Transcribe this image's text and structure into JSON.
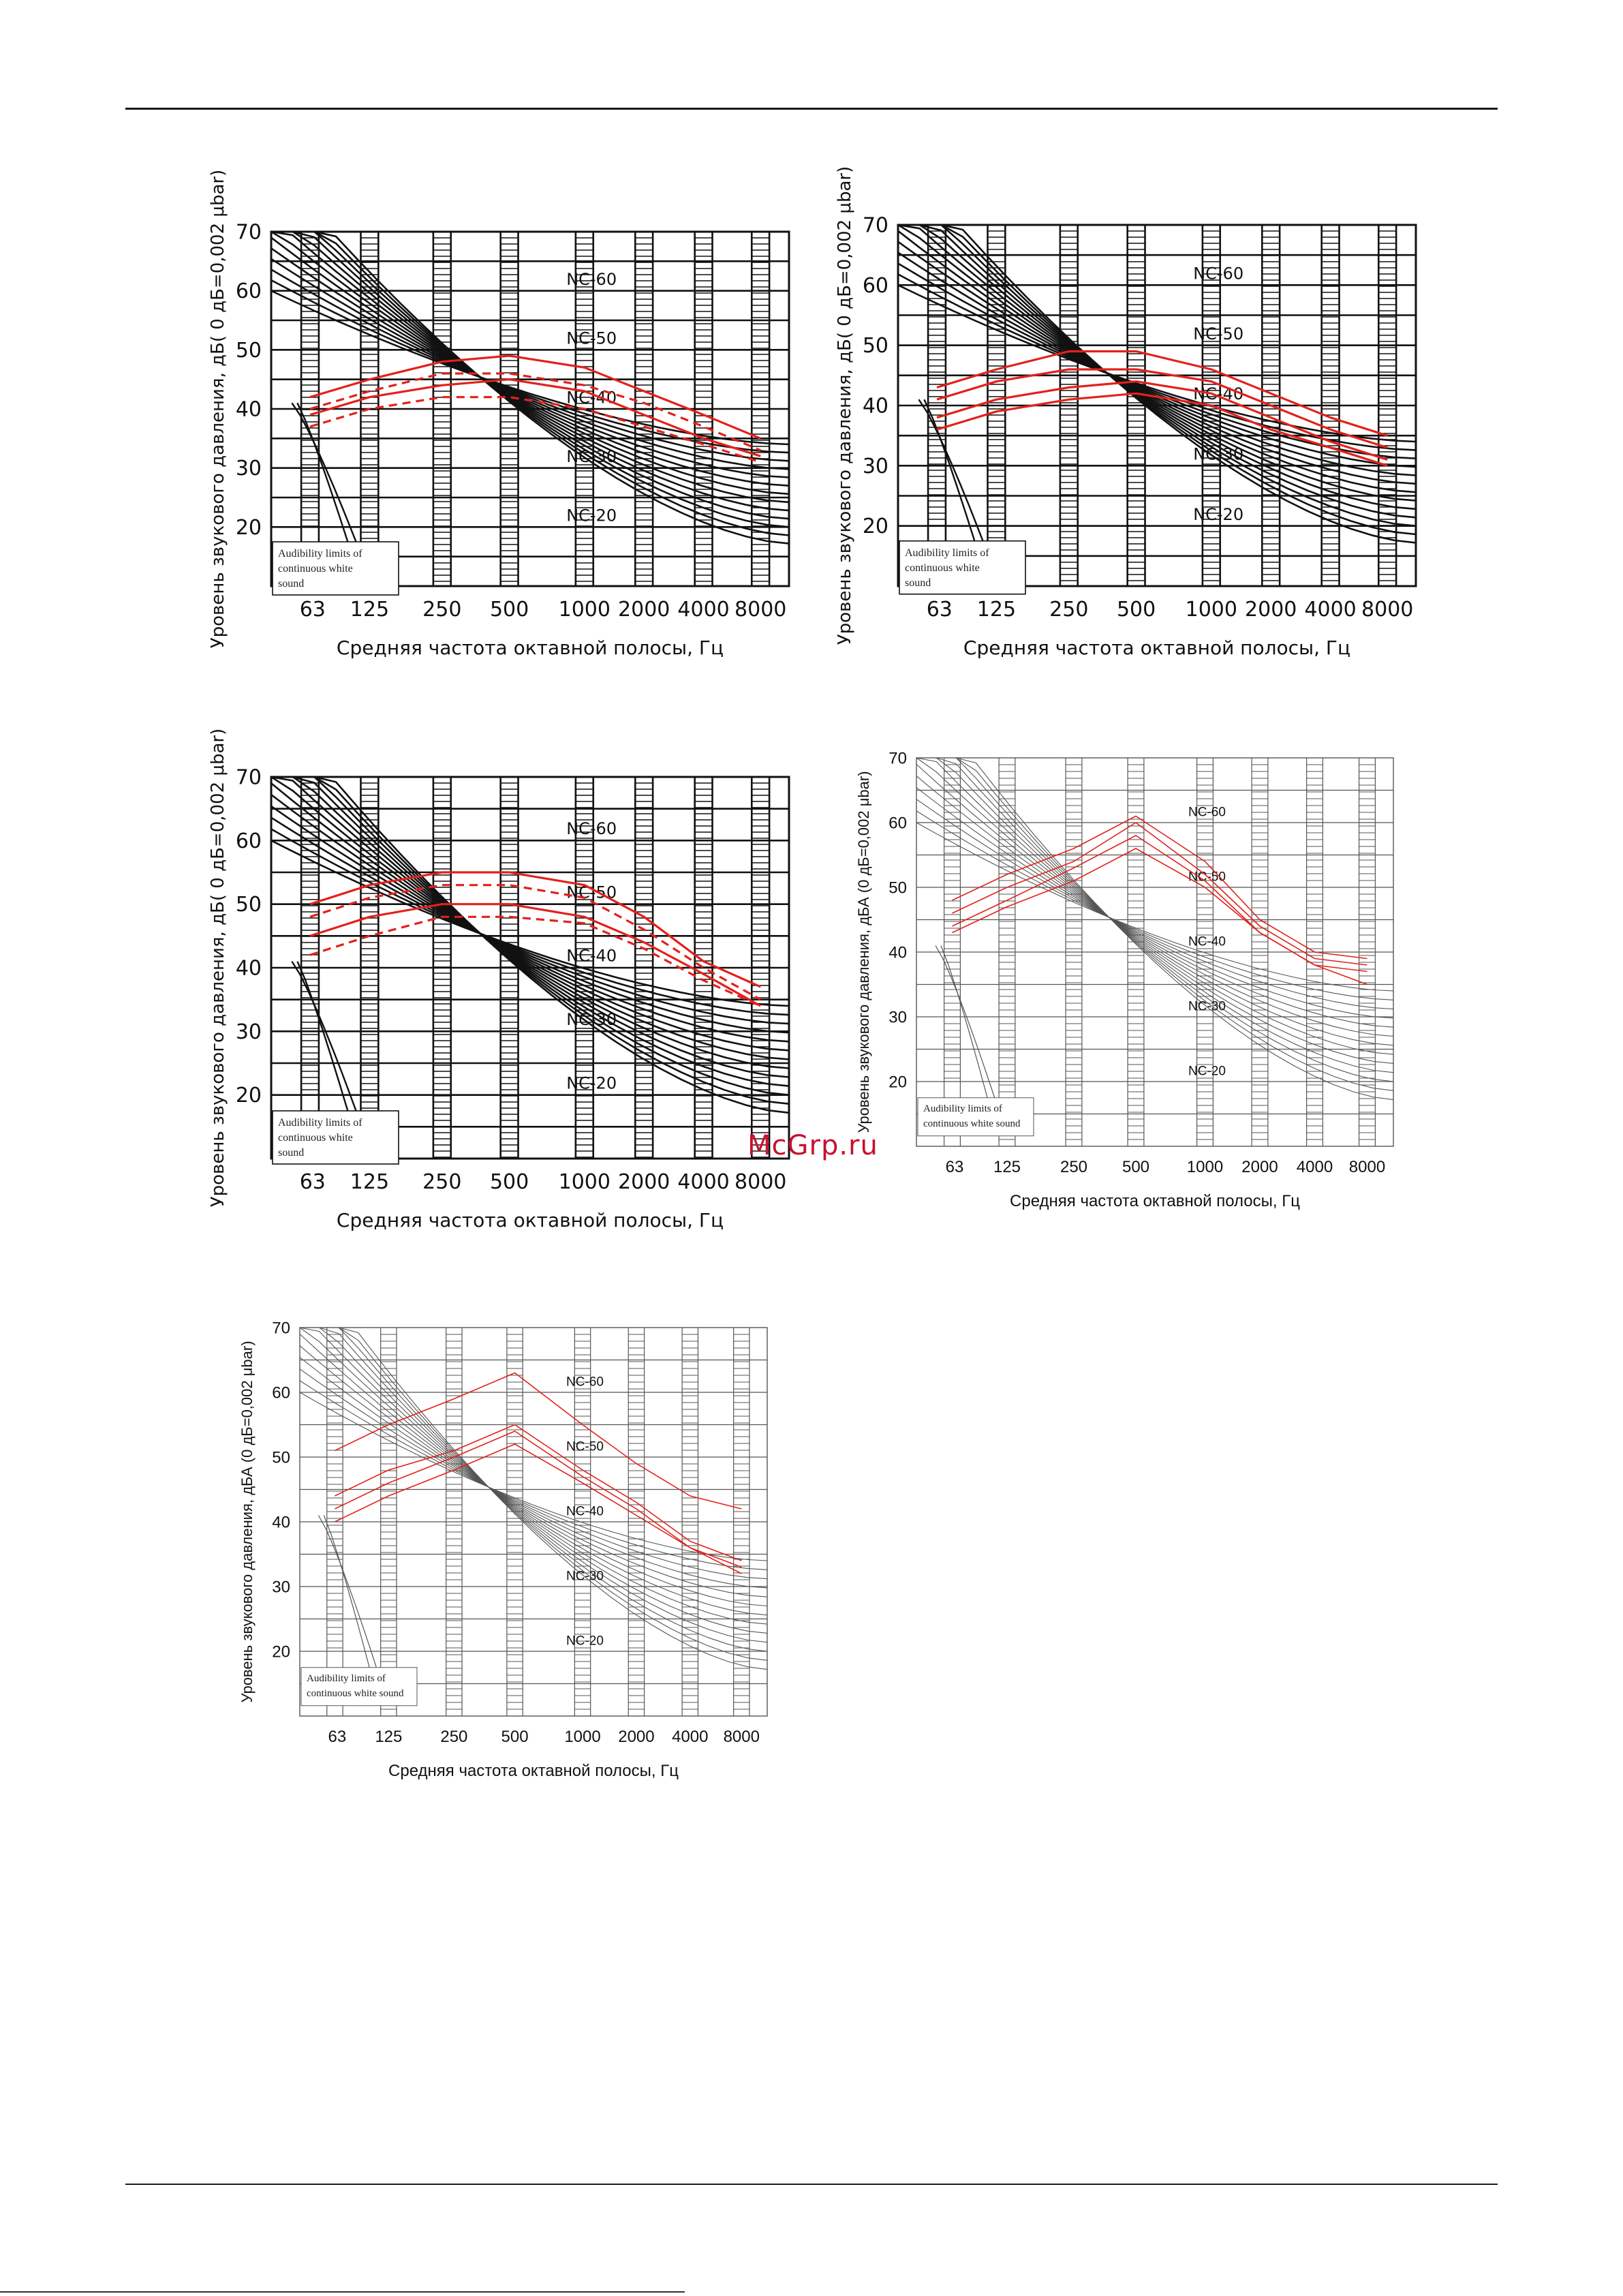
{
  "watermark": "McGrp.ru",
  "common": {
    "x_ticks": [
      "63",
      "125",
      "250",
      "500",
      "1000",
      "2000",
      "4000",
      "8000"
    ],
    "y_ticks": [
      20,
      30,
      40,
      50,
      60,
      70
    ],
    "nc_labels": [
      "NC-60",
      "NC-50",
      "NC-40",
      "NC-30",
      "NC-20"
    ],
    "xlabel": "Средняя частота октавной полосы, Гц",
    "audibility_note": [
      "Audibility limits of",
      "continuous white",
      "sound"
    ],
    "audibility_note_2line": [
      "Audibility limits of",
      "continuous white sound"
    ]
  },
  "chart_data": [
    {
      "type": "line",
      "title": "",
      "xlabel": "Средняя частота октавной полосы, Гц",
      "ylabel": "Уровень звукового давления, дБ( 0 дБ=0,002 μbar)",
      "x": [
        "63",
        "125",
        "250",
        "500",
        "1000",
        "2000",
        "4000",
        "8000"
      ],
      "ylim": [
        10,
        70
      ],
      "grid": true,
      "style": "bold",
      "series": [
        {
          "style": "solid",
          "color": "#e3211b",
          "values": [
            42,
            45,
            48,
            49,
            47,
            43,
            39,
            35
          ]
        },
        {
          "style": "dashed",
          "color": "#e3211b",
          "values": [
            40,
            43,
            46,
            46,
            44,
            41,
            37,
            33
          ]
        },
        {
          "style": "dashed",
          "color": "#e3211b",
          "values": [
            37,
            40,
            42,
            42,
            40,
            37,
            34,
            31
          ]
        },
        {
          "style": "solid",
          "color": "#e3211b",
          "values": [
            39,
            42,
            44,
            45,
            43,
            39,
            35,
            32
          ]
        }
      ]
    },
    {
      "type": "line",
      "title": "",
      "xlabel": "Средняя частота октавной полосы, Гц",
      "ylabel": "Уровень звукового давления, дБ( 0 дБ=0,002 μbar)",
      "x": [
        "63",
        "125",
        "250",
        "500",
        "1000",
        "2000",
        "4000",
        "8000"
      ],
      "ylim": [
        10,
        70
      ],
      "grid": true,
      "style": "bold",
      "series": [
        {
          "style": "solid",
          "color": "#e3211b",
          "values": [
            43,
            46,
            49,
            49,
            46,
            42,
            38,
            35
          ]
        },
        {
          "style": "solid",
          "color": "#e3211b",
          "values": [
            41,
            44,
            46,
            46,
            44,
            40,
            36,
            33
          ]
        },
        {
          "style": "solid",
          "color": "#e3211b",
          "values": [
            38,
            41,
            43,
            44,
            42,
            38,
            34,
            31
          ]
        },
        {
          "style": "solid",
          "color": "#e3211b",
          "values": [
            36,
            39,
            41,
            42,
            40,
            36,
            33,
            30
          ]
        }
      ]
    },
    {
      "type": "line",
      "title": "",
      "xlabel": "Средняя частота октавной полосы, Гц",
      "ylabel": "Уровень звукового давления, дБ( 0 дБ=0,002 μbar)",
      "x": [
        "63",
        "125",
        "250",
        "500",
        "1000",
        "2000",
        "4000",
        "8000"
      ],
      "ylim": [
        10,
        70
      ],
      "grid": true,
      "style": "bold",
      "series": [
        {
          "style": "solid",
          "color": "#e3211b",
          "values": [
            50,
            53,
            55,
            55,
            53,
            48,
            41,
            37
          ]
        },
        {
          "style": "dashed",
          "color": "#e3211b",
          "values": [
            48,
            51,
            53,
            53,
            51,
            46,
            40,
            35
          ]
        },
        {
          "style": "solid",
          "color": "#e3211b",
          "values": [
            45,
            48,
            50,
            50,
            48,
            44,
            39,
            34
          ]
        },
        {
          "style": "dashed",
          "color": "#e3211b",
          "values": [
            42,
            45,
            48,
            48,
            47,
            43,
            38,
            34
          ]
        }
      ]
    },
    {
      "type": "line",
      "title": "",
      "xlabel": "Средняя частота октавной полосы, Гц",
      "ylabel": "Уровень звукового давления, дБА (0 дБ=0,002 μbar)",
      "x": [
        "63",
        "125",
        "250",
        "500",
        "1000",
        "2000",
        "4000",
        "8000"
      ],
      "ylim": [
        10,
        70
      ],
      "grid": true,
      "style": "thin",
      "series": [
        {
          "style": "solid",
          "color": "#e3211b",
          "values": [
            48,
            52,
            56,
            61,
            54,
            45,
            40,
            39
          ]
        },
        {
          "style": "solid",
          "color": "#e3211b",
          "values": [
            46,
            50,
            54,
            60,
            52,
            44,
            39,
            38
          ]
        },
        {
          "style": "solid",
          "color": "#e3211b",
          "values": [
            44,
            48,
            53,
            58,
            51,
            43,
            38,
            37
          ]
        },
        {
          "style": "solid",
          "color": "#e3211b",
          "values": [
            43,
            47,
            51,
            56,
            50,
            43,
            38,
            35
          ]
        }
      ]
    },
    {
      "type": "line",
      "title": "",
      "xlabel": "Средняя частота октавной полосы, Гц",
      "ylabel": "Уровень звукового давления, дБА (0 дБ=0,002 μbar)",
      "x": [
        "63",
        "125",
        "250",
        "500",
        "1000",
        "2000",
        "4000",
        "8000"
      ],
      "ylim": [
        10,
        70
      ],
      "grid": true,
      "style": "thin",
      "series": [
        {
          "style": "solid",
          "color": "#e3211b",
          "values": [
            51,
            55,
            59,
            63,
            55,
            49,
            44,
            42
          ]
        },
        {
          "style": "solid",
          "color": "#e3211b",
          "values": [
            44,
            48,
            51,
            55,
            48,
            43,
            37,
            34
          ]
        },
        {
          "style": "solid",
          "color": "#e3211b",
          "values": [
            42,
            46,
            50,
            54,
            47,
            42,
            36,
            33
          ]
        },
        {
          "style": "solid",
          "color": "#e3211b",
          "values": [
            40,
            44,
            48,
            52,
            46,
            41,
            36,
            32
          ]
        }
      ]
    }
  ]
}
